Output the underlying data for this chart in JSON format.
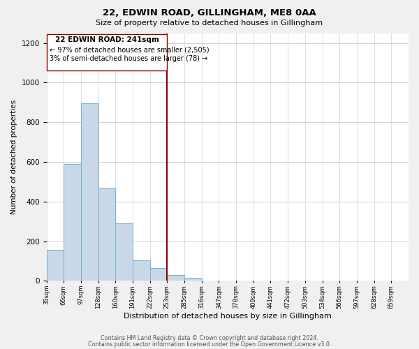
{
  "title": "22, EDWIN ROAD, GILLINGHAM, ME8 0AA",
  "subtitle": "Size of property relative to detached houses in Gillingham",
  "xlabel": "Distribution of detached houses by size in Gillingham",
  "ylabel": "Number of detached properties",
  "bar_labels": [
    "35sqm",
    "66sqm",
    "97sqm",
    "128sqm",
    "160sqm",
    "191sqm",
    "222sqm",
    "253sqm",
    "285sqm",
    "316sqm",
    "347sqm",
    "378sqm",
    "409sqm",
    "441sqm",
    "472sqm",
    "503sqm",
    "534sqm",
    "566sqm",
    "597sqm",
    "628sqm",
    "659sqm"
  ],
  "bar_heights": [
    155,
    590,
    895,
    470,
    290,
    105,
    65,
    30,
    15,
    0,
    0,
    0,
    0,
    0,
    0,
    0,
    0,
    0,
    0,
    0,
    0
  ],
  "bar_color": "#c8d8e8",
  "bar_edge_color": "#7ab0cc",
  "marker_label": "22 EDWIN ROAD: 241sqm",
  "annotation_line1": "← 97% of detached houses are smaller (2,505)",
  "annotation_line2": "3% of semi-detached houses are larger (78) →",
  "marker_color": "#8b0000",
  "ylim": [
    0,
    1250
  ],
  "yticks": [
    0,
    200,
    400,
    600,
    800,
    1000,
    1200
  ],
  "footer1": "Contains HM Land Registry data © Crown copyright and database right 2024.",
  "footer2": "Contains public sector information licensed under the Open Government Licence v3.0.",
  "background_color": "#f0f0f0",
  "plot_background": "#ffffff",
  "grid_color": "#c8d4dc"
}
